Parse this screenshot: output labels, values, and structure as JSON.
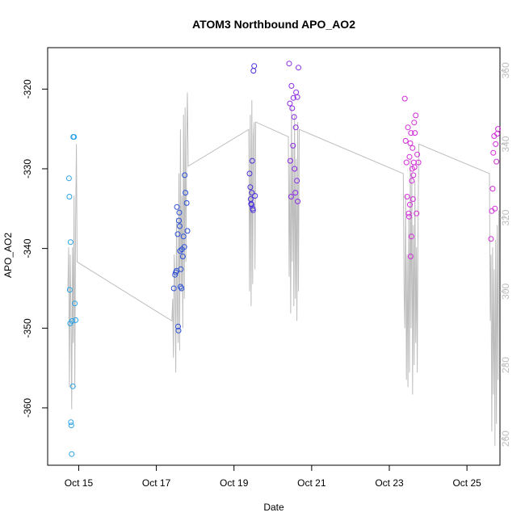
{
  "chart_data": {
    "type": "scatter",
    "title": "ATOM3 Northbound APO_AO2",
    "xlabel": "Date",
    "ylabel": "APO_AO2",
    "x_ticks": [
      "Oct 15",
      "Oct 17",
      "Oct 19",
      "Oct 21",
      "Oct 23",
      "Oct 25"
    ],
    "y_ticks": [
      -320,
      -330,
      -340,
      -350,
      -360
    ],
    "y2_ticks": [
      260,
      280,
      300,
      320,
      340,
      360
    ],
    "xlim": [
      14.2,
      25.85
    ],
    "ylim": [
      -367.2,
      -314.8
    ],
    "y2lim": [
      252.8,
      366.2
    ],
    "grid": false,
    "colors": {
      "points_early": "#29a3e8",
      "points_mid1": "#2b4fd6",
      "points_mid2": "#4b2fd9",
      "points_mid3": "#8a2be2",
      "points_late": "#d12bd6",
      "line_series": "#bdbdbd"
    },
    "series": [
      {
        "marker": "circle",
        "color": "#29a3e8",
        "x": [
          14.75,
          14.76,
          14.77,
          14.78,
          14.79,
          14.8,
          14.81,
          14.82,
          14.83,
          14.85,
          14.86,
          14.88,
          14.9,
          14.92
        ],
        "y": [
          -331.2,
          -333.5,
          -345.2,
          -349.4,
          -339.2,
          -361.8,
          -362.2,
          -365.8,
          -349.1,
          -357.3,
          -326.0,
          -326.0,
          -346.9,
          -349.0
        ]
      },
      {
        "marker": "circle",
        "color": "#2b4fd6",
        "x": [
          17.45,
          17.48,
          17.5,
          17.52,
          17.53,
          17.55,
          17.56,
          17.57,
          17.58,
          17.59,
          17.6,
          17.61,
          17.62,
          17.63,
          17.65,
          17.66,
          17.68,
          17.7,
          17.72,
          17.73,
          17.75,
          17.78,
          17.8
        ],
        "y": [
          -345.0,
          -343.3,
          -343.0,
          -342.8,
          -334.8,
          -338.2,
          -349.8,
          -350.3,
          -336.5,
          -335.5,
          -337.2,
          -340.3,
          -344.8,
          -342.6,
          -345.0,
          -340.1,
          -341.0,
          -338.5,
          -339.8,
          -330.8,
          -333.0,
          -334.3,
          -337.8
        ]
      },
      {
        "marker": "circle",
        "color": "#4b2fd9",
        "x": [
          19.4,
          19.42,
          19.43,
          19.44,
          19.45,
          19.46,
          19.47,
          19.48,
          19.49,
          19.5,
          19.52,
          19.54
        ],
        "y": [
          -330.6,
          -332.3,
          -333.8,
          -334.4,
          -334.5,
          -333.0,
          -329.0,
          -335.0,
          -335.2,
          -317.7,
          -317.1,
          -333.4
        ]
      },
      {
        "marker": "circle",
        "color": "#8a2be2",
        "x": [
          20.42,
          20.44,
          20.45,
          20.47,
          20.48,
          20.5,
          20.52,
          20.53,
          20.55,
          20.56,
          20.58,
          20.59,
          20.6,
          20.62,
          20.63,
          20.64,
          20.66
        ],
        "y": [
          -316.8,
          -321.8,
          -329.0,
          -333.5,
          -319.6,
          -322.4,
          -327.1,
          -321.1,
          -323.5,
          -330.0,
          -333.0,
          -324.8,
          -320.4,
          -331.5,
          -321.0,
          -334.1,
          -317.3
        ]
      },
      {
        "marker": "circle",
        "color": "#d12bd6",
        "x": [
          23.4,
          23.42,
          23.44,
          23.46,
          23.48,
          23.5,
          23.51,
          23.52,
          23.53,
          23.54,
          23.55,
          23.56,
          23.57,
          23.58,
          23.59,
          23.6,
          23.61,
          23.62,
          23.63,
          23.64,
          23.65,
          23.66,
          23.68,
          23.7,
          23.72,
          23.75,
          25.62,
          25.64,
          25.66,
          25.68,
          25.7,
          25.72,
          25.74,
          25.76,
          25.78,
          25.8
        ],
        "y": [
          -321.2,
          -326.5,
          -329.2,
          -333.5,
          -324.8,
          -335.6,
          -336.0,
          -328.5,
          -334.5,
          -326.8,
          -341.0,
          -325.5,
          -338.5,
          -331.5,
          -330.0,
          -327.4,
          -333.8,
          -330.8,
          -329.2,
          -324.2,
          -329.8,
          -325.5,
          -323.3,
          -335.6,
          -328.2,
          -329.2,
          -338.8,
          -335.3,
          -332.5,
          -328.0,
          -325.9,
          -335.0,
          -326.9,
          -329.1,
          -325.6,
          -325.0
        ]
      },
      {
        "marker": "line",
        "axis": "right",
        "color": "#bdbdbd",
        "x": [
          14.72,
          14.74,
          14.76,
          14.78,
          14.8,
          14.82,
          14.84,
          14.86,
          14.88,
          14.9,
          14.92,
          14.94,
          14.96,
          17.4,
          17.42,
          17.44,
          17.46,
          17.48,
          17.5,
          17.52,
          17.54,
          17.56,
          17.58,
          17.6,
          17.62,
          17.64,
          17.66,
          17.68,
          17.7,
          17.72,
          17.74,
          17.76,
          17.78,
          17.8,
          17.82,
          19.38,
          19.4,
          19.42,
          19.44,
          19.46,
          19.48,
          19.5,
          19.52,
          19.54,
          19.56,
          20.4,
          20.42,
          20.44,
          20.46,
          20.48,
          20.5,
          20.52,
          20.54,
          20.56,
          20.58,
          20.6,
          20.62,
          20.64,
          20.66,
          20.68,
          23.36,
          23.38,
          23.4,
          23.42,
          23.44,
          23.46,
          23.48,
          23.5,
          23.52,
          23.54,
          23.56,
          23.58,
          23.6,
          23.62,
          23.64,
          23.66,
          23.68,
          23.7,
          23.72,
          23.74,
          23.76,
          25.58,
          25.6,
          25.62,
          25.64,
          25.66,
          25.68,
          25.7,
          25.72,
          25.74,
          25.76,
          25.78,
          25.8,
          25.82
        ],
        "y": [
          300,
          312,
          274,
          310,
          296,
          268,
          312,
          286,
          326,
          274,
          318,
          340,
          308,
          292,
          298,
          282,
          310,
          302,
          278,
          320,
          296,
          286,
          332,
          284,
          344,
          300,
          326,
          290,
          348,
          298,
          350,
          308,
          340,
          354,
          334,
          344,
          300,
          348,
          296,
          352,
          302,
          342,
          346,
          306,
          346,
          342,
          304,
          336,
          294,
          350,
          308,
          340,
          296,
          348,
          298,
          336,
          292,
          346,
          300,
          344,
          332,
          300,
          290,
          326,
          276,
          310,
          274,
          320,
          278,
          336,
          290,
          332,
          272,
          318,
          280,
          330,
          286,
          312,
          278,
          320,
          340,
          332,
          292,
          310,
          262,
          312,
          272,
          306,
          258,
          314,
          264,
          318,
          276,
          322
        ]
      }
    ]
  }
}
